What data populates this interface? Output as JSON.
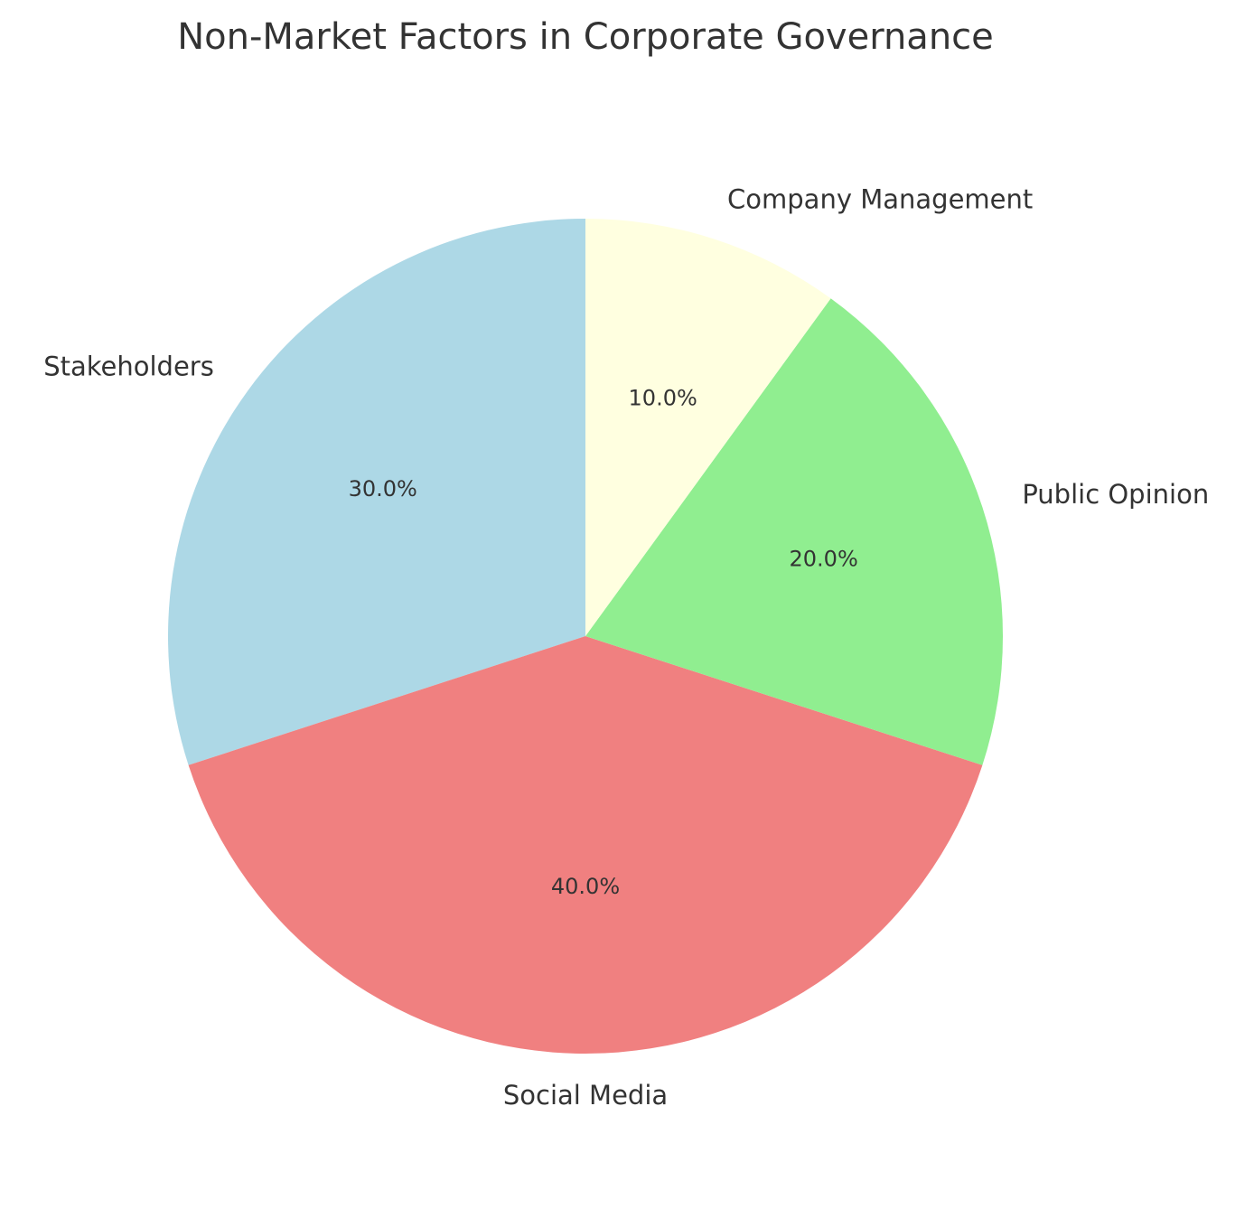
{
  "chart_data": {
    "type": "pie",
    "title": "Non-Market Factors in Corporate Governance",
    "categories": [
      "Stakeholders",
      "Social Media",
      "Public Opinion",
      "Company Management"
    ],
    "values": [
      30.0,
      40.0,
      20.0,
      10.0
    ],
    "percent_labels": [
      "30.0%",
      "40.0%",
      "20.0%",
      "10.0%"
    ],
    "colors": [
      "#add8e6",
      "#f08080",
      "#90ee90",
      "#ffffe0"
    ],
    "start_angle_deg": 90,
    "direction": "counterclockwise",
    "legend": "none"
  }
}
